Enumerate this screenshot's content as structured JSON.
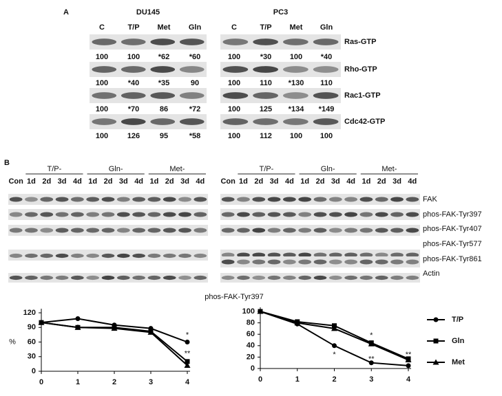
{
  "panel_a": {
    "label": "A",
    "blots": [
      {
        "cell_line": "DU145",
        "columns": [
          "C",
          "T/P",
          "Met",
          "Gln"
        ],
        "rows": [
          [
            "100",
            "100",
            "*62",
            "*60"
          ],
          [
            "100",
            "*40",
            "*35",
            "90"
          ],
          [
            "100",
            "*70",
            "86",
            "*72"
          ],
          [
            "100",
            "126",
            "95",
            "*58"
          ]
        ]
      },
      {
        "cell_line": "PC3",
        "columns": [
          "C",
          "T/P",
          "Met",
          "Gln"
        ],
        "rows": [
          [
            "100",
            "*30",
            "100",
            "*40"
          ],
          [
            "100",
            "110",
            "*130",
            "110"
          ],
          [
            "100",
            "125",
            "*134",
            "*149"
          ],
          [
            "100",
            "112",
            "100",
            "100"
          ]
        ]
      }
    ],
    "row_labels": [
      "Ras-GTP",
      "Rho-GTP",
      "Rac1-GTP",
      "Cdc42-GTP"
    ]
  },
  "panel_b": {
    "label": "B",
    "blots": [
      {
        "control": "Con",
        "groups": [
          {
            "name": "T/P-",
            "lanes": [
              "1d",
              "2d",
              "3d",
              "4d"
            ]
          },
          {
            "name": "Gln-",
            "lanes": [
              "1d",
              "2d",
              "3d",
              "4d"
            ]
          },
          {
            "name": "Met-",
            "lanes": [
              "1d",
              "2d",
              "3d",
              "4d"
            ]
          }
        ]
      },
      {
        "control": "Con",
        "groups": [
          {
            "name": "T/P-",
            "lanes": [
              "1d",
              "2d",
              "3d",
              "4d"
            ]
          },
          {
            "name": "Gln-",
            "lanes": [
              "1d",
              "2d",
              "3d",
              "4d"
            ]
          },
          {
            "name": "Met-",
            "lanes": [
              "1d",
              "2d",
              "3d",
              "4d"
            ]
          }
        ]
      }
    ],
    "row_labels": [
      "FAK",
      "phos-FAK-Tyr397",
      "phos-FAK-Tyr407",
      "phos-FAK-Tyr577",
      "phos-FAK-Tyr861",
      "Actin"
    ]
  },
  "chart_title": "phos-FAK-Tyr397",
  "chart_data": [
    {
      "type": "line",
      "y_label": "%",
      "x": [
        0,
        1,
        2,
        3,
        4
      ],
      "xlim": [
        0,
        4
      ],
      "xticks": [
        0,
        1,
        2,
        3,
        4
      ],
      "ylim": [
        0,
        120
      ],
      "yticks": [
        0,
        30,
        60,
        90,
        120
      ],
      "series": [
        {
          "name": "T/P",
          "color": "#000000",
          "marker": "circle",
          "values": [
            100,
            108,
            95,
            88,
            60
          ]
        },
        {
          "name": "Gln",
          "color": "#000000",
          "marker": "square",
          "values": [
            100,
            90,
            90,
            82,
            20
          ]
        },
        {
          "name": "Met",
          "color": "#000000",
          "marker": "triangle",
          "values": [
            100,
            90,
            88,
            80,
            12
          ]
        }
      ],
      "annotations": [
        {
          "text": "*",
          "x": 4,
          "y": 74
        },
        {
          "text": "**",
          "x": 4,
          "y": 36
        }
      ]
    },
    {
      "type": "line",
      "x": [
        0,
        1,
        2,
        3,
        4
      ],
      "xlim": [
        0,
        4
      ],
      "xticks": [
        0,
        1,
        2,
        3,
        4
      ],
      "ylim": [
        0,
        100
      ],
      "yticks": [
        0,
        20,
        40,
        60,
        80,
        100
      ],
      "legend": "right",
      "series": [
        {
          "name": "T/P",
          "color": "#000000",
          "marker": "circle",
          "values": [
            100,
            78,
            40,
            10,
            5
          ]
        },
        {
          "name": "Gln",
          "color": "#000000",
          "marker": "square",
          "values": [
            100,
            82,
            75,
            45,
            17
          ]
        },
        {
          "name": "Met",
          "color": "#000000",
          "marker": "triangle",
          "values": [
            100,
            80,
            70,
            43,
            15
          ]
        }
      ],
      "annotations": [
        {
          "text": "*",
          "x": 2,
          "y": 24
        },
        {
          "text": "*",
          "x": 3,
          "y": 58
        },
        {
          "text": "**",
          "x": 3,
          "y": 16
        },
        {
          "text": "**",
          "x": 4,
          "y": 24
        }
      ]
    }
  ]
}
